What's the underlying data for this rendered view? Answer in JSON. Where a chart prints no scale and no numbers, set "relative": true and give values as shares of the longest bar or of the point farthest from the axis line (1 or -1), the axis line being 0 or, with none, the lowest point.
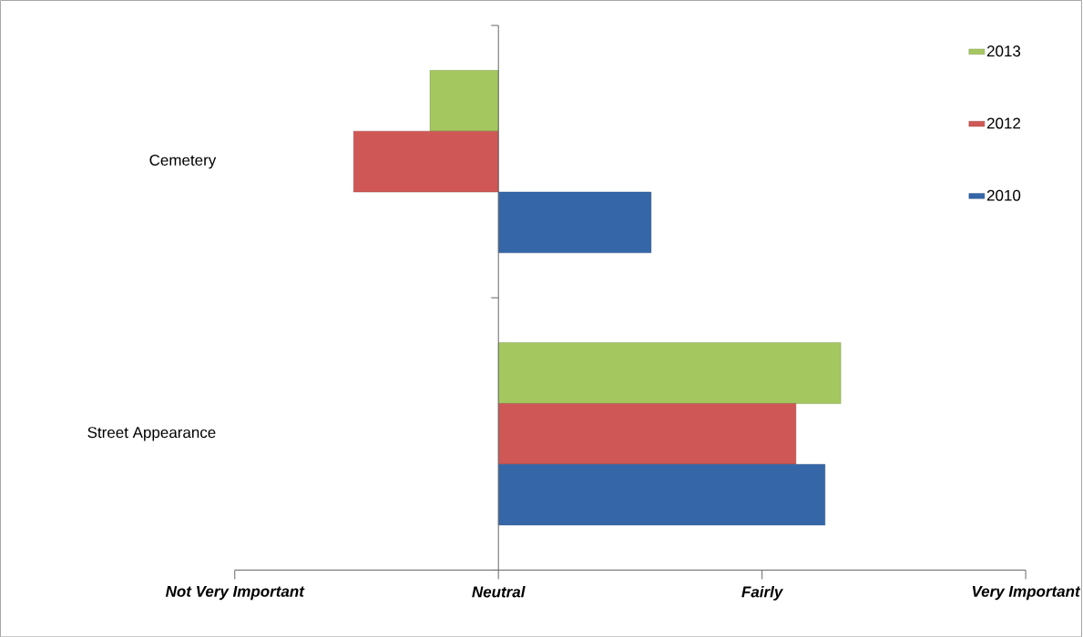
{
  "chart_data": {
    "type": "bar",
    "orientation": "horizontal",
    "relative": true,
    "categories": [
      "Cemetery",
      "Street Appearance"
    ],
    "series": [
      {
        "name": "2013",
        "color": "#a5c75f",
        "values": [
          -0.2,
          1
        ]
      },
      {
        "name": "2012",
        "color": "#cf5755",
        "values": [
          -0.423,
          0.869
        ]
      },
      {
        "name": "2010",
        "color": "#3566a8",
        "values": [
          0.446,
          0.954
        ]
      }
    ],
    "annotations": [
      "Not Very Important",
      "Neutral",
      "Fairly",
      "Very Important"
    ],
    "grid": false,
    "legend": "top right"
  }
}
